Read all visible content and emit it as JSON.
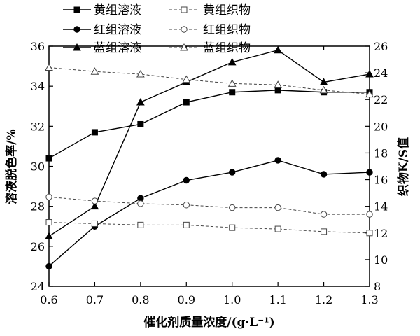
{
  "chart_data": {
    "type": "line",
    "xlabel": "催化剂质量浓度/(g·L⁻¹)",
    "ylabel_left": "溶液脱色率/%",
    "ylabel_right": "织物K/S值",
    "x": [
      0.6,
      0.7,
      0.8,
      0.9,
      1.0,
      1.1,
      1.2,
      1.3
    ],
    "x_ticks": [
      "0.6",
      "0.7",
      "0.8",
      "0.9",
      "1.0",
      "1.1",
      "1.2",
      "1.3"
    ],
    "xlim": [
      0.6,
      1.3
    ],
    "ylim_left": [
      24,
      36
    ],
    "ylim_right": [
      8,
      26
    ],
    "y_ticks_left": [
      "24",
      "26",
      "28",
      "30",
      "32",
      "34",
      "36"
    ],
    "y_ticks_right": [
      "8",
      "10",
      "12",
      "14",
      "16",
      "18",
      "20",
      "22",
      "24",
      "26"
    ],
    "grid": false,
    "legend_position": "top-left",
    "series": [
      {
        "name": "黄组溶液",
        "axis": "left",
        "marker": "square",
        "fill": "filled",
        "dash": "solid",
        "values": [
          30.4,
          31.7,
          32.1,
          33.2,
          33.7,
          33.8,
          33.7,
          33.7
        ]
      },
      {
        "name": "红组溶液",
        "axis": "left",
        "marker": "circle",
        "fill": "filled",
        "dash": "solid",
        "values": [
          25.0,
          27.0,
          28.4,
          29.3,
          29.7,
          30.3,
          29.6,
          29.7
        ]
      },
      {
        "name": "蓝组溶液",
        "axis": "left",
        "marker": "triangle",
        "fill": "filled",
        "dash": "solid",
        "values": [
          26.5,
          28.0,
          33.2,
          34.2,
          35.2,
          35.8,
          34.2,
          34.6
        ]
      },
      {
        "name": "黄组织物",
        "axis": "right",
        "marker": "square",
        "fill": "open",
        "dash": "dashed",
        "values": [
          12.8,
          12.7,
          12.6,
          12.6,
          12.4,
          12.3,
          12.1,
          12.0
        ]
      },
      {
        "name": "红组织物",
        "axis": "right",
        "marker": "circle",
        "fill": "open",
        "dash": "dashed",
        "values": [
          14.7,
          14.4,
          14.2,
          14.1,
          13.9,
          13.9,
          13.4,
          13.4
        ]
      },
      {
        "name": "蓝组织物",
        "axis": "right",
        "marker": "triangle",
        "fill": "open",
        "dash": "dashed",
        "values": [
          24.4,
          24.1,
          23.9,
          23.5,
          23.2,
          23.1,
          22.7,
          22.4
        ]
      }
    ]
  }
}
